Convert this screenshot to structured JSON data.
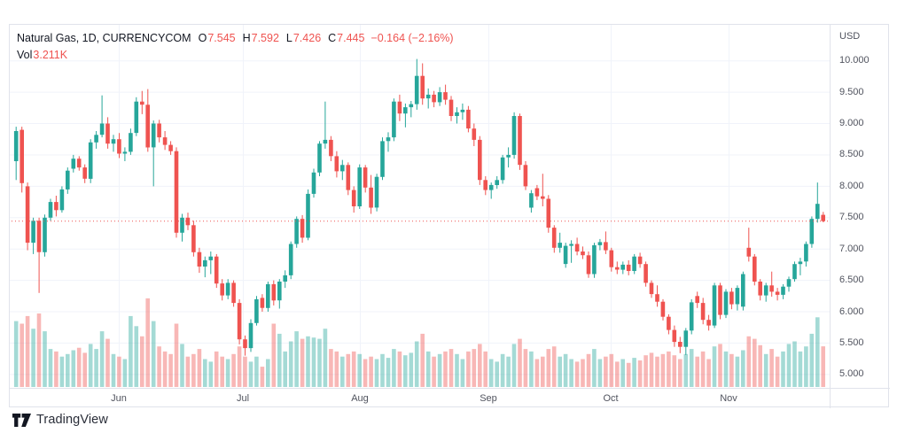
{
  "legend": {
    "title": "Natural Gas, 1D, CURRENCYCOM",
    "o_label": "O",
    "open": "7.545",
    "h_label": "H",
    "high": "7.592",
    "l_label": "L",
    "low": "7.426",
    "c_label": "C",
    "close": "7.445",
    "change": "−0.164 (−2.16%)",
    "vol_label": "Vol",
    "volume": "3.211K"
  },
  "axes": {
    "currency": "USD",
    "price_ticks": [
      "10.000",
      "9.500",
      "9.000",
      "8.500",
      "8.000",
      "7.500",
      "7.000",
      "6.500",
      "6.000",
      "5.500",
      "5.000"
    ]
  },
  "logo": {
    "text": "TradingView"
  },
  "colors": {
    "up": "#26a69a",
    "down": "#ef5350",
    "grid": "#f0f3fa",
    "border": "#e0e3eb",
    "axis_text": "#50535e",
    "legend_text": "#131722",
    "legend_value": "#ef5350",
    "price_line": "#ef5350",
    "background": "#ffffff",
    "logo": "#2a2e39"
  },
  "chart_data": {
    "type": "candlestick",
    "symbol": "Natural Gas",
    "interval": "1D",
    "exchange": "CURRENCYCOM",
    "currency": "USD",
    "title": "Natural Gas, 1D, CURRENCYCOM",
    "grid": true,
    "legend_position": "top-left",
    "price_axis": {
      "max": 10.0,
      "min": 5.0,
      "step": 0.5,
      "side": "right"
    },
    "price_line": {
      "value": 7.445,
      "style": "dotted"
    },
    "last_bar": {
      "o": 7.545,
      "h": 7.592,
      "l": 7.426,
      "c": 7.445,
      "change": -0.164,
      "change_pct": -2.16,
      "volume_k": 3.211
    },
    "volume_unit": "K",
    "volume_scale_max": 7.2,
    "months": [
      {
        "label": "Jun",
        "pos": 0.133
      },
      {
        "label": "Jul",
        "pos": 0.284
      },
      {
        "label": "Aug",
        "pos": 0.427
      },
      {
        "label": "Sep",
        "pos": 0.584
      },
      {
        "label": "Oct",
        "pos": 0.733
      },
      {
        "label": "Nov",
        "pos": 0.877
      }
    ],
    "candles": [
      [
        8.4,
        8.95,
        8.1,
        8.88,
        5.2
      ],
      [
        8.9,
        8.95,
        7.9,
        8.05,
        5.0
      ],
      [
        8.0,
        8.06,
        6.98,
        7.1,
        5.6
      ],
      [
        7.1,
        7.5,
        6.92,
        7.45,
        4.6
      ],
      [
        7.45,
        7.5,
        6.3,
        6.95,
        5.8
      ],
      [
        6.95,
        7.55,
        6.88,
        7.5,
        4.4
      ],
      [
        7.5,
        7.8,
        7.45,
        7.75,
        3.0
      ],
      [
        7.75,
        7.85,
        7.52,
        7.62,
        2.8
      ],
      [
        7.62,
        8.0,
        7.58,
        7.95,
        2.4
      ],
      [
        7.95,
        8.3,
        7.88,
        8.25,
        2.6
      ],
      [
        8.28,
        8.5,
        8.22,
        8.44,
        2.9
      ],
      [
        8.44,
        8.48,
        8.25,
        8.3,
        3.1
      ],
      [
        8.3,
        8.35,
        8.05,
        8.12,
        2.7
      ],
      [
        8.12,
        8.75,
        8.05,
        8.7,
        3.4
      ],
      [
        8.7,
        8.88,
        8.6,
        8.82,
        3.0
      ],
      [
        8.82,
        9.45,
        8.78,
        9.0,
        4.4
      ],
      [
        9.0,
        9.1,
        8.6,
        8.68,
        3.8
      ],
      [
        8.68,
        8.82,
        8.55,
        8.75,
        2.6
      ],
      [
        8.75,
        8.85,
        8.45,
        8.52,
        2.4
      ],
      [
        8.52,
        8.62,
        8.4,
        8.55,
        2.2
      ],
      [
        8.55,
        8.92,
        8.5,
        8.85,
        5.6
      ],
      [
        8.85,
        9.42,
        8.8,
        9.35,
        4.8
      ],
      [
        9.35,
        9.52,
        9.15,
        9.3,
        4.0
      ],
      [
        9.3,
        9.55,
        8.55,
        8.62,
        7.0
      ],
      [
        8.62,
        9.05,
        8.0,
        9.0,
        5.2
      ],
      [
        9.0,
        9.06,
        8.7,
        8.78,
        3.2
      ],
      [
        8.78,
        8.88,
        8.58,
        8.66,
        2.8
      ],
      [
        8.66,
        8.72,
        8.5,
        8.56,
        2.6
      ],
      [
        8.56,
        8.62,
        7.18,
        7.26,
        5.0
      ],
      [
        7.26,
        7.56,
        7.12,
        7.5,
        3.4
      ],
      [
        7.5,
        7.58,
        7.3,
        7.38,
        2.4
      ],
      [
        7.38,
        7.45,
        6.88,
        6.95,
        2.6
      ],
      [
        6.95,
        7.02,
        6.62,
        6.72,
        3.0
      ],
      [
        6.72,
        6.88,
        6.55,
        6.82,
        2.2
      ],
      [
        6.82,
        6.96,
        6.6,
        6.88,
        2.0
      ],
      [
        6.88,
        6.92,
        6.38,
        6.45,
        2.8
      ],
      [
        6.45,
        6.52,
        6.18,
        6.26,
        2.4
      ],
      [
        6.26,
        6.52,
        6.2,
        6.46,
        2.2
      ],
      [
        6.46,
        6.5,
        6.08,
        6.14,
        2.6
      ],
      [
        6.14,
        6.2,
        5.48,
        5.56,
        3.2
      ],
      [
        5.56,
        5.62,
        5.3,
        5.42,
        2.4
      ],
      [
        5.42,
        5.88,
        5.36,
        5.82,
        2.0
      ],
      [
        5.82,
        6.25,
        5.78,
        6.2,
        2.4
      ],
      [
        6.22,
        6.28,
        6.0,
        6.06,
        1.6
      ],
      [
        6.06,
        6.48,
        6.0,
        6.44,
        2.2
      ],
      [
        6.44,
        6.5,
        6.1,
        6.18,
        5.0
      ],
      [
        6.18,
        6.52,
        6.05,
        6.48,
        4.2
      ],
      [
        6.48,
        6.66,
        6.38,
        6.58,
        2.8
      ],
      [
        6.58,
        7.12,
        6.52,
        7.08,
        3.6
      ],
      [
        7.08,
        7.52,
        7.02,
        7.48,
        4.4
      ],
      [
        7.48,
        7.54,
        7.1,
        7.18,
        3.8
      ],
      [
        7.18,
        7.95,
        7.14,
        7.88,
        4.0
      ],
      [
        7.88,
        8.28,
        7.82,
        8.22,
        3.9
      ],
      [
        8.22,
        8.72,
        8.16,
        8.68,
        3.8
      ],
      [
        8.68,
        9.35,
        8.6,
        8.74,
        4.6
      ],
      [
        8.74,
        8.8,
        8.4,
        8.48,
        3.0
      ],
      [
        8.48,
        8.56,
        8.14,
        8.24,
        2.8
      ],
      [
        8.24,
        8.42,
        8.1,
        8.34,
        2.4
      ],
      [
        8.34,
        8.38,
        7.86,
        7.94,
        2.6
      ],
      [
        7.94,
        8.0,
        7.58,
        7.68,
        2.8
      ],
      [
        7.68,
        8.35,
        7.64,
        8.3,
        2.6
      ],
      [
        8.3,
        8.34,
        7.9,
        7.98,
        2.2
      ],
      [
        7.98,
        8.18,
        7.56,
        7.66,
        2.4
      ],
      [
        7.66,
        8.2,
        7.6,
        8.15,
        2.2
      ],
      [
        8.15,
        8.78,
        8.1,
        8.72,
        2.6
      ],
      [
        8.72,
        8.86,
        8.55,
        8.78,
        2.3
      ],
      [
        8.78,
        9.4,
        8.72,
        9.35,
        3.0
      ],
      [
        9.35,
        9.46,
        9.04,
        9.16,
        2.8
      ],
      [
        9.16,
        9.32,
        8.94,
        9.26,
        2.5
      ],
      [
        9.26,
        9.36,
        9.1,
        9.31,
        2.7
      ],
      [
        9.31,
        10.03,
        9.22,
        9.76,
        3.6
      ],
      [
        9.76,
        9.96,
        9.3,
        9.4,
        4.2
      ],
      [
        9.4,
        9.56,
        9.24,
        9.46,
        2.8
      ],
      [
        9.46,
        9.52,
        9.26,
        9.34,
        2.4
      ],
      [
        9.34,
        9.58,
        9.28,
        9.5,
        2.6
      ],
      [
        9.5,
        9.62,
        9.3,
        9.38,
        2.8
      ],
      [
        9.38,
        9.44,
        9.04,
        9.12,
        3.0
      ],
      [
        9.12,
        9.26,
        9.0,
        9.18,
        2.6
      ],
      [
        9.18,
        9.32,
        9.06,
        9.22,
        2.2
      ],
      [
        9.22,
        9.28,
        8.86,
        8.92,
        2.8
      ],
      [
        8.92,
        9.0,
        8.64,
        8.74,
        3.0
      ],
      [
        8.74,
        8.8,
        8.02,
        8.1,
        3.4
      ],
      [
        8.1,
        8.16,
        7.86,
        7.94,
        2.8
      ],
      [
        7.94,
        8.06,
        7.8,
        8.02,
        2.2
      ],
      [
        8.02,
        8.16,
        7.96,
        8.1,
        2.0
      ],
      [
        8.1,
        8.5,
        8.04,
        8.46,
        2.6
      ],
      [
        8.46,
        8.62,
        8.3,
        8.5,
        2.4
      ],
      [
        8.5,
        9.18,
        8.44,
        9.12,
        3.4
      ],
      [
        9.12,
        9.16,
        8.26,
        8.34,
        3.8
      ],
      [
        8.34,
        8.4,
        7.94,
        8.0,
        3.0
      ],
      [
        7.66,
        7.94,
        7.58,
        7.89,
        2.8
      ],
      [
        7.97,
        8.02,
        7.78,
        7.84,
        2.2
      ],
      [
        7.84,
        8.2,
        7.68,
        7.8,
        2.4
      ],
      [
        7.8,
        7.86,
        7.26,
        7.34,
        3.0
      ],
      [
        7.34,
        7.38,
        6.94,
        7.02,
        3.2
      ],
      [
        7.02,
        7.26,
        6.94,
        7.1,
        2.4
      ],
      [
        6.76,
        7.1,
        6.7,
        7.05,
        2.6
      ],
      [
        7.05,
        7.14,
        6.78,
        7.08,
        2.2
      ],
      [
        7.08,
        7.18,
        6.9,
        6.96,
        2.0
      ],
      [
        6.96,
        7.04,
        6.84,
        6.9,
        2.2
      ],
      [
        6.9,
        6.96,
        6.54,
        6.6,
        2.6
      ],
      [
        6.6,
        7.1,
        6.54,
        7.06,
        3.0
      ],
      [
        7.06,
        7.16,
        6.98,
        7.11,
        2.2
      ],
      [
        7.11,
        7.28,
        6.92,
        6.98,
        2.4
      ],
      [
        6.98,
        7.02,
        6.64,
        6.71,
        2.6
      ],
      [
        6.71,
        6.8,
        6.6,
        6.67,
        2.0
      ],
      [
        6.67,
        6.8,
        6.6,
        6.75,
        2.2
      ],
      [
        6.75,
        6.82,
        6.58,
        6.65,
        1.9
      ],
      [
        6.65,
        6.92,
        6.6,
        6.88,
        2.3
      ],
      [
        6.88,
        6.94,
        6.7,
        6.76,
        2.1
      ],
      [
        6.76,
        6.8,
        6.4,
        6.46,
        2.5
      ],
      [
        6.46,
        6.5,
        6.22,
        6.28,
        2.7
      ],
      [
        6.28,
        6.42,
        6.08,
        6.16,
        2.4
      ],
      [
        6.16,
        6.2,
        5.86,
        5.92,
        2.6
      ],
      [
        5.92,
        5.96,
        5.64,
        5.71,
        2.8
      ],
      [
        5.71,
        5.78,
        5.44,
        5.52,
        2.5
      ],
      [
        5.52,
        5.6,
        5.34,
        5.44,
        2.2
      ],
      [
        5.44,
        5.74,
        5.31,
        5.7,
        2.6
      ],
      [
        5.7,
        6.2,
        5.64,
        6.15,
        3.0
      ],
      [
        6.25,
        6.32,
        6.06,
        6.14,
        2.4
      ],
      [
        6.14,
        6.22,
        5.8,
        5.87,
        2.8
      ],
      [
        5.87,
        5.95,
        5.7,
        5.78,
        2.2
      ],
      [
        5.78,
        6.46,
        5.74,
        6.42,
        3.2
      ],
      [
        6.42,
        6.46,
        5.88,
        5.95,
        3.4
      ],
      [
        5.95,
        6.36,
        5.9,
        6.32,
        2.8
      ],
      [
        6.32,
        6.38,
        6.04,
        6.12,
        2.6
      ],
      [
        6.12,
        6.42,
        6.02,
        6.38,
        2.4
      ],
      [
        6.08,
        6.64,
        6.02,
        6.6,
        2.9
      ],
      [
        7.02,
        7.34,
        6.8,
        6.88,
        4.0
      ],
      [
        6.88,
        6.92,
        6.42,
        6.48,
        3.8
      ],
      [
        6.48,
        6.52,
        6.18,
        6.26,
        3.3
      ],
      [
        6.26,
        6.46,
        6.16,
        6.42,
        2.6
      ],
      [
        6.42,
        6.64,
        6.24,
        6.32,
        3.0
      ],
      [
        6.32,
        6.38,
        6.18,
        6.27,
        2.4
      ],
      [
        6.27,
        6.44,
        6.2,
        6.4,
        2.8
      ],
      [
        6.4,
        6.56,
        6.32,
        6.52,
        3.4
      ],
      [
        6.52,
        6.8,
        6.48,
        6.76,
        3.6
      ],
      [
        6.76,
        6.86,
        6.58,
        6.8,
        2.8
      ],
      [
        6.8,
        7.12,
        6.72,
        7.08,
        3.2
      ],
      [
        7.08,
        7.52,
        7.02,
        7.48,
        4.2
      ],
      [
        7.48,
        8.06,
        7.42,
        7.72,
        5.5
      ],
      [
        7.545,
        7.592,
        7.426,
        7.445,
        3.211
      ]
    ]
  }
}
